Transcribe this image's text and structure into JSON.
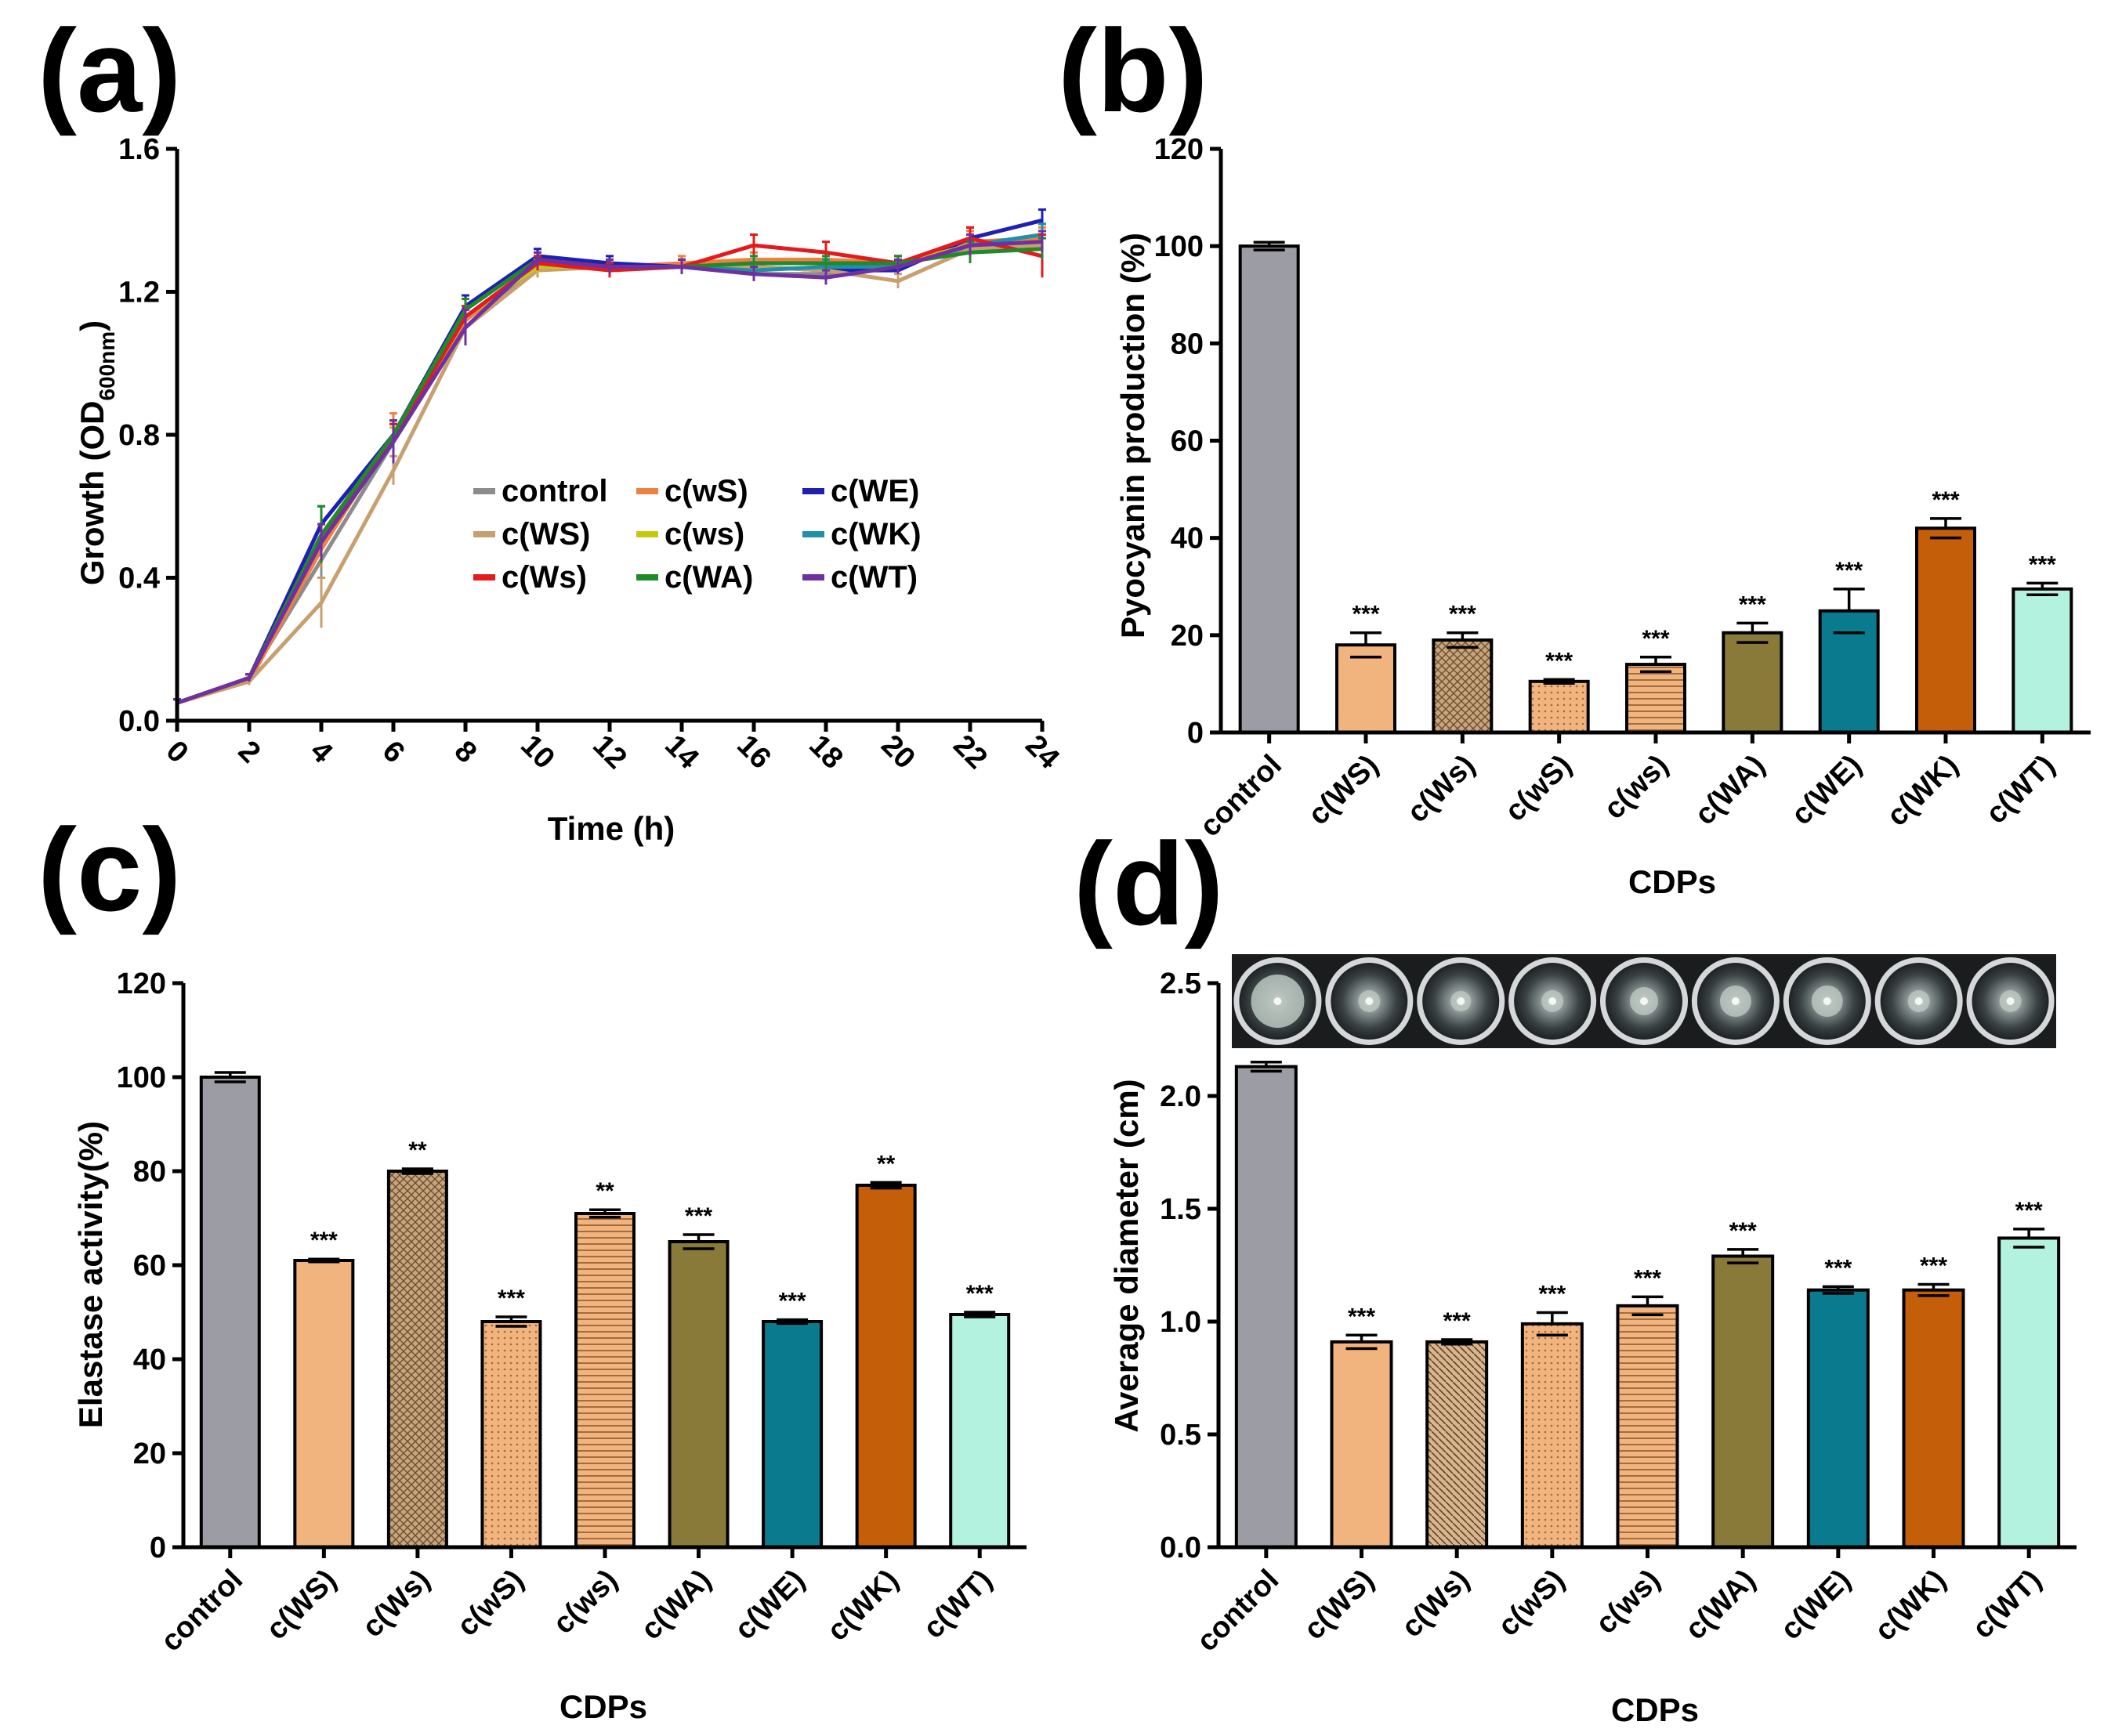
{
  "panel_labels": [
    "(a)",
    "(b)",
    "(c)",
    "(d)"
  ],
  "colors": {
    "control": "#9c9ca4",
    "cWS": "#f2b47e",
    "cWSlower": "#b5926b",
    "cwS": "#f2b47e",
    "cws": "#f2b47e",
    "cWA": "#8a7a3a",
    "cWE": "#0a7a8e",
    "cWK": "#c55e08",
    "cWT": "#b3f2de"
  },
  "categories": [
    "control",
    "c(WS)",
    "c(Ws)",
    "c(wS)",
    "c(ws)",
    "c(WA)",
    "c(WE)",
    "c(WK)",
    "c(WT)"
  ],
  "chart_data": [
    {
      "panel": "(a)",
      "type": "line",
      "xlabel": "Time (h)",
      "ylabel_main": "Growth (OD",
      "ylabel_sub": "600nm",
      "ylabel_close": ")",
      "x": [
        0,
        2,
        4,
        6,
        8,
        10,
        12,
        14,
        16,
        18,
        20,
        22,
        24
      ],
      "xticks": [
        "0",
        "2",
        "4",
        "6",
        "8",
        "10",
        "12",
        "14",
        "16",
        "18",
        "20",
        "22",
        "24"
      ],
      "xlim": [
        0,
        24
      ],
      "ylim": [
        0,
        1.6
      ],
      "yticks": [
        "0.0",
        "0.4",
        "0.8",
        "1.2",
        "1.6"
      ],
      "legend_position": "center-right",
      "series": [
        {
          "name": "control",
          "color": "#8c8c8c",
          "values": [
            0.05,
            0.12,
            0.45,
            0.78,
            1.1,
            1.27,
            1.27,
            1.27,
            1.25,
            1.25,
            1.28,
            1.32,
            1.35
          ],
          "err": [
            0.01,
            0.01,
            0.05,
            0.04,
            0.03,
            0.02,
            0.02,
            0.02,
            0.02,
            0.02,
            0.02,
            0.03,
            0.04
          ]
        },
        {
          "name": "c(wS)",
          "color": "#f08040",
          "values": [
            0.05,
            0.11,
            0.48,
            0.8,
            1.12,
            1.28,
            1.27,
            1.28,
            1.29,
            1.29,
            1.28,
            1.34,
            1.35
          ],
          "err": [
            0.01,
            0.01,
            0.05,
            0.06,
            0.03,
            0.02,
            0.02,
            0.02,
            0.02,
            0.02,
            0.02,
            0.03,
            0.03
          ]
        },
        {
          "name": "c(WE)",
          "color": "#1f1fb4",
          "values": [
            0.05,
            0.12,
            0.55,
            0.8,
            1.16,
            1.3,
            1.28,
            1.27,
            1.27,
            1.26,
            1.26,
            1.35,
            1.4
          ],
          "err": [
            0.01,
            0.01,
            0.05,
            0.04,
            0.03,
            0.02,
            0.02,
            0.02,
            0.02,
            0.02,
            0.02,
            0.03,
            0.03
          ]
        },
        {
          "name": "c(WS)",
          "color": "#c8a070",
          "values": [
            0.05,
            0.11,
            0.33,
            0.7,
            1.1,
            1.26,
            1.27,
            1.27,
            1.27,
            1.26,
            1.23,
            1.32,
            1.33
          ],
          "err": [
            0.01,
            0.01,
            0.07,
            0.04,
            0.03,
            0.02,
            0.02,
            0.02,
            0.02,
            0.02,
            0.02,
            0.04,
            0.03
          ]
        },
        {
          "name": "c(ws)",
          "color": "#c8c810",
          "values": [
            0.05,
            0.12,
            0.5,
            0.78,
            1.13,
            1.27,
            1.27,
            1.27,
            1.26,
            1.27,
            1.28,
            1.33,
            1.34
          ],
          "err": [
            0.01,
            0.01,
            0.05,
            0.04,
            0.03,
            0.02,
            0.02,
            0.02,
            0.02,
            0.02,
            0.02,
            0.03,
            0.03
          ]
        },
        {
          "name": "c(WK)",
          "color": "#2090a8",
          "values": [
            0.05,
            0.12,
            0.5,
            0.79,
            1.13,
            1.28,
            1.27,
            1.27,
            1.26,
            1.27,
            1.27,
            1.33,
            1.36
          ],
          "err": [
            0.01,
            0.01,
            0.05,
            0.04,
            0.03,
            0.02,
            0.02,
            0.02,
            0.02,
            0.02,
            0.02,
            0.03,
            0.03
          ]
        },
        {
          "name": "c(Ws)",
          "color": "#e41a1c",
          "values": [
            0.05,
            0.12,
            0.5,
            0.79,
            1.13,
            1.28,
            1.26,
            1.27,
            1.33,
            1.31,
            1.28,
            1.35,
            1.3
          ],
          "err": [
            0.01,
            0.01,
            0.05,
            0.04,
            0.03,
            0.02,
            0.02,
            0.02,
            0.03,
            0.03,
            0.02,
            0.03,
            0.06
          ]
        },
        {
          "name": "c(WA)",
          "color": "#208a2a",
          "values": [
            0.05,
            0.12,
            0.52,
            0.8,
            1.15,
            1.29,
            1.27,
            1.27,
            1.28,
            1.28,
            1.28,
            1.31,
            1.32
          ],
          "err": [
            0.01,
            0.01,
            0.08,
            0.04,
            0.03,
            0.02,
            0.02,
            0.02,
            0.02,
            0.02,
            0.02,
            0.03,
            0.03
          ]
        },
        {
          "name": "c(WT)",
          "color": "#7030a0",
          "values": [
            0.05,
            0.12,
            0.5,
            0.78,
            1.1,
            1.29,
            1.27,
            1.27,
            1.25,
            1.24,
            1.27,
            1.33,
            1.34
          ],
          "err": [
            0.01,
            0.01,
            0.05,
            0.06,
            0.05,
            0.02,
            0.02,
            0.02,
            0.02,
            0.02,
            0.02,
            0.03,
            0.03
          ]
        }
      ]
    },
    {
      "panel": "(b)",
      "type": "bar",
      "xlabel": "CDPs",
      "ylabel": "Pyocyanin production (%)",
      "ylim": [
        0,
        120
      ],
      "yticks": [
        "0",
        "20",
        "40",
        "60",
        "80",
        "100",
        "120"
      ],
      "values": [
        100,
        18,
        19,
        10.5,
        14,
        20.5,
        25,
        42,
        29.5
      ],
      "err": [
        0.8,
        2.5,
        1.5,
        0.4,
        1.5,
        2,
        4.5,
        2,
        1.2
      ],
      "significance": [
        "",
        "***",
        "***",
        "***",
        "***",
        "***",
        "***",
        "***",
        "***"
      ]
    },
    {
      "panel": "(c)",
      "type": "bar",
      "xlabel": "CDPs",
      "ylabel": "Elastase activity(%)",
      "ylim": [
        0,
        120
      ],
      "yticks": [
        "0",
        "20",
        "40",
        "60",
        "80",
        "100",
        "120"
      ],
      "values": [
        100,
        61,
        80,
        48,
        71,
        65,
        48,
        77,
        49.5
      ],
      "err": [
        1,
        0.3,
        0.5,
        1,
        0.8,
        1.5,
        0.4,
        0.6,
        0.5
      ],
      "significance": [
        "",
        "***",
        "**",
        "***",
        "**",
        "***",
        "***",
        "**",
        "***"
      ]
    },
    {
      "panel": "(d)",
      "type": "bar",
      "xlabel": "CDPs",
      "ylabel": "Average diameter (cm)",
      "ylim": [
        0,
        2.5
      ],
      "yticks": [
        "0.0",
        "0.5",
        "1.0",
        "1.5",
        "2.0",
        "2.5"
      ],
      "values": [
        2.13,
        0.91,
        0.91,
        0.99,
        1.07,
        1.29,
        1.14,
        1.14,
        1.37
      ],
      "err": [
        0.02,
        0.03,
        0.01,
        0.05,
        0.04,
        0.03,
        0.015,
        0.025,
        0.04
      ],
      "significance": [
        "",
        "***",
        "***",
        "***",
        "***",
        "***",
        "***",
        "***",
        "***"
      ]
    }
  ]
}
